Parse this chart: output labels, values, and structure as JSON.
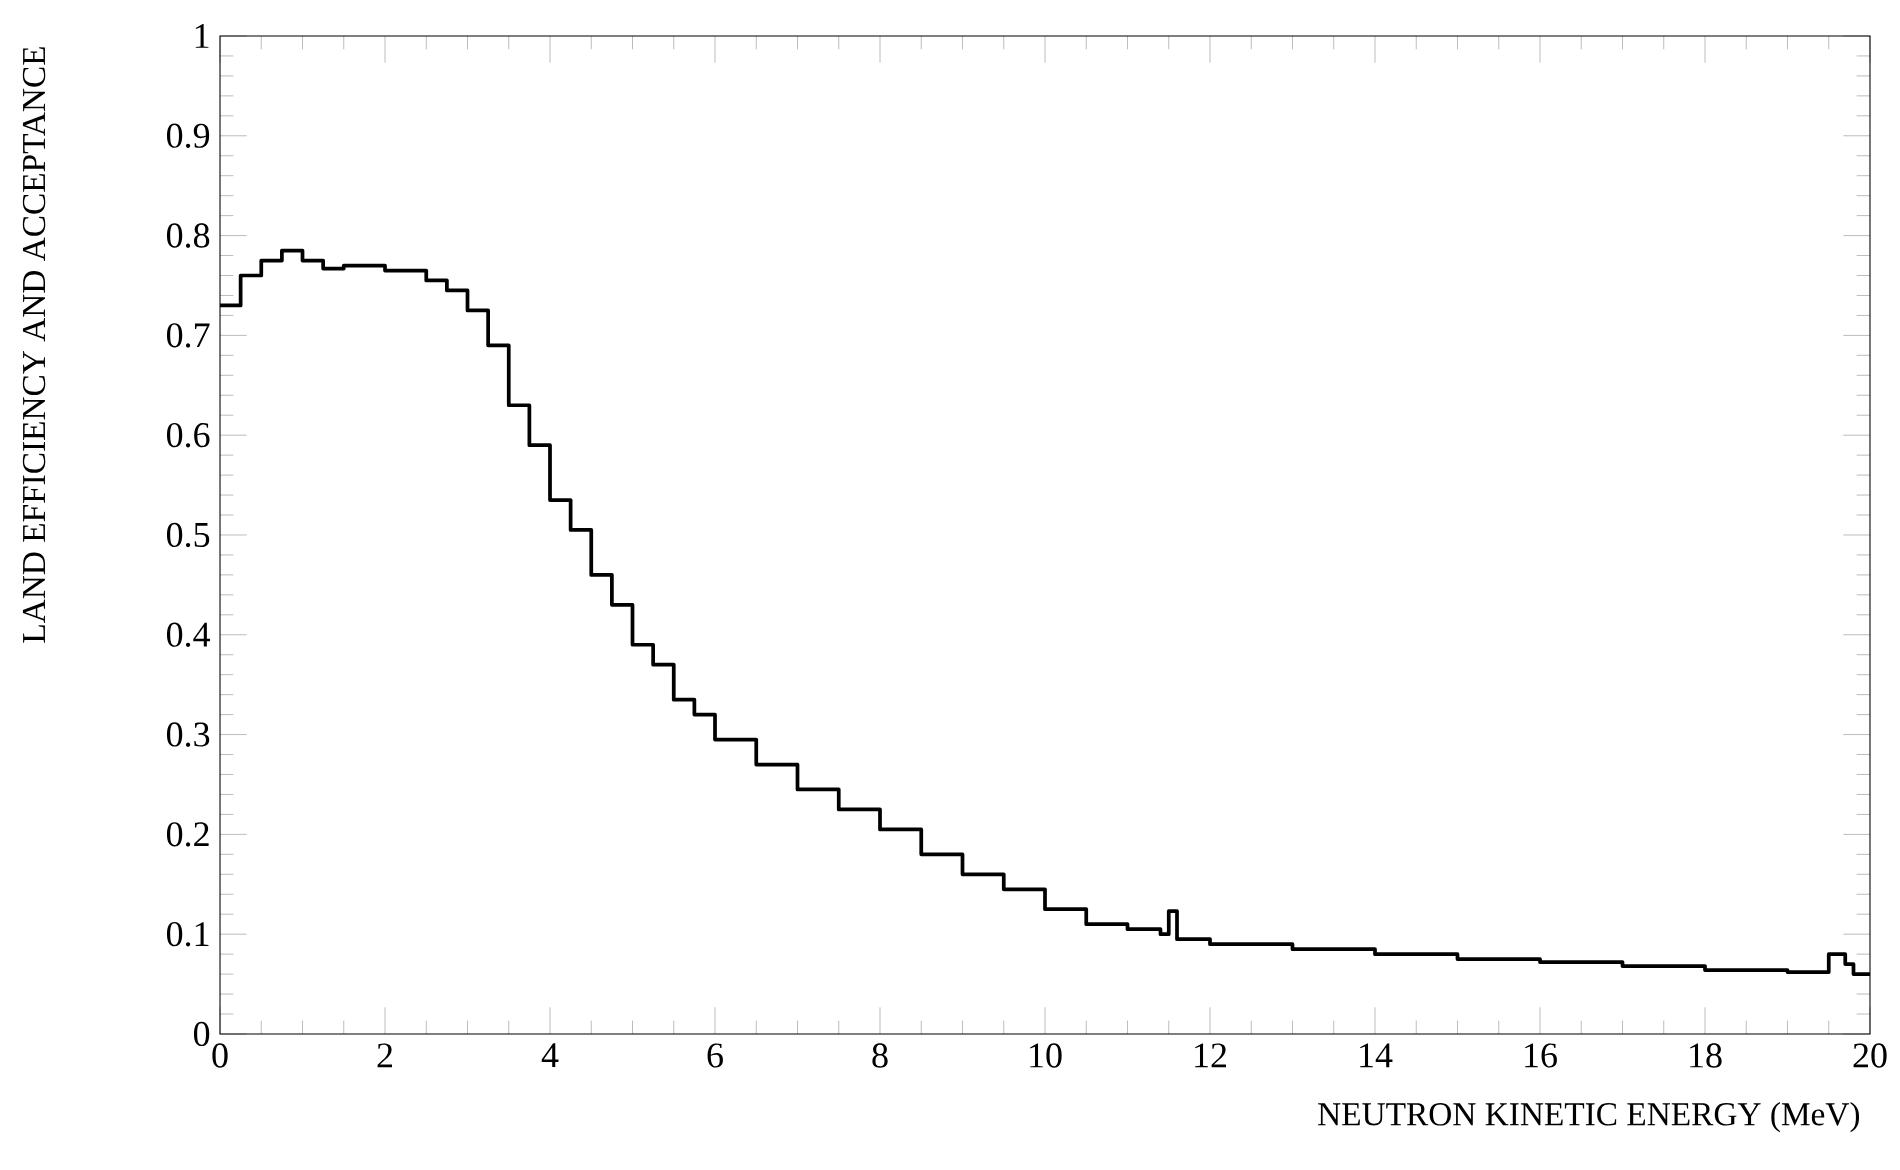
{
  "chart_data": {
    "type": "step",
    "xlabel": "NEUTRON KINETIC ENERGY (MeV)",
    "ylabel": "LAND EFFICIENCY AND ACCEPTANCE",
    "x": [
      0,
      0.25,
      0.5,
      0.75,
      1.0,
      1.25,
      1.5,
      2.0,
      2.5,
      2.75,
      3.0,
      3.25,
      3.5,
      3.75,
      4.0,
      4.25,
      4.5,
      4.75,
      5.0,
      5.25,
      5.5,
      5.75,
      6.0,
      6.5,
      7.0,
      7.5,
      8.0,
      8.5,
      9.0,
      9.5,
      10.0,
      10.5,
      11.0,
      11.4,
      11.5,
      11.6,
      12,
      13,
      14,
      15,
      16,
      17,
      18,
      19,
      19.3,
      19.5,
      19.7,
      19.8,
      20
    ],
    "series": [
      {
        "color": "#000000",
        "values": [
          0.73,
          0.76,
          0.775,
          0.785,
          0.775,
          0.767,
          0.77,
          0.765,
          0.755,
          0.745,
          0.725,
          0.69,
          0.63,
          0.59,
          0.535,
          0.505,
          0.46,
          0.43,
          0.39,
          0.37,
          0.335,
          0.32,
          0.295,
          0.27,
          0.245,
          0.225,
          0.205,
          0.18,
          0.16,
          0.145,
          0.125,
          0.11,
          0.105,
          0.1,
          0.123,
          0.095,
          0.09,
          0.085,
          0.08,
          0.075,
          0.072,
          0.068,
          0.064,
          0.062,
          0.062,
          0.08,
          0.07,
          0.06,
          0.058
        ]
      }
    ],
    "xlim": [
      0,
      20
    ],
    "ylim": [
      0,
      1
    ],
    "xticks": [
      0,
      2,
      4,
      6,
      8,
      10,
      12,
      14,
      16,
      18,
      20
    ],
    "yticks": [
      0,
      0.1,
      0.2,
      0.3,
      0.4,
      0.5,
      0.6,
      0.7,
      0.8,
      0.9,
      1
    ]
  }
}
